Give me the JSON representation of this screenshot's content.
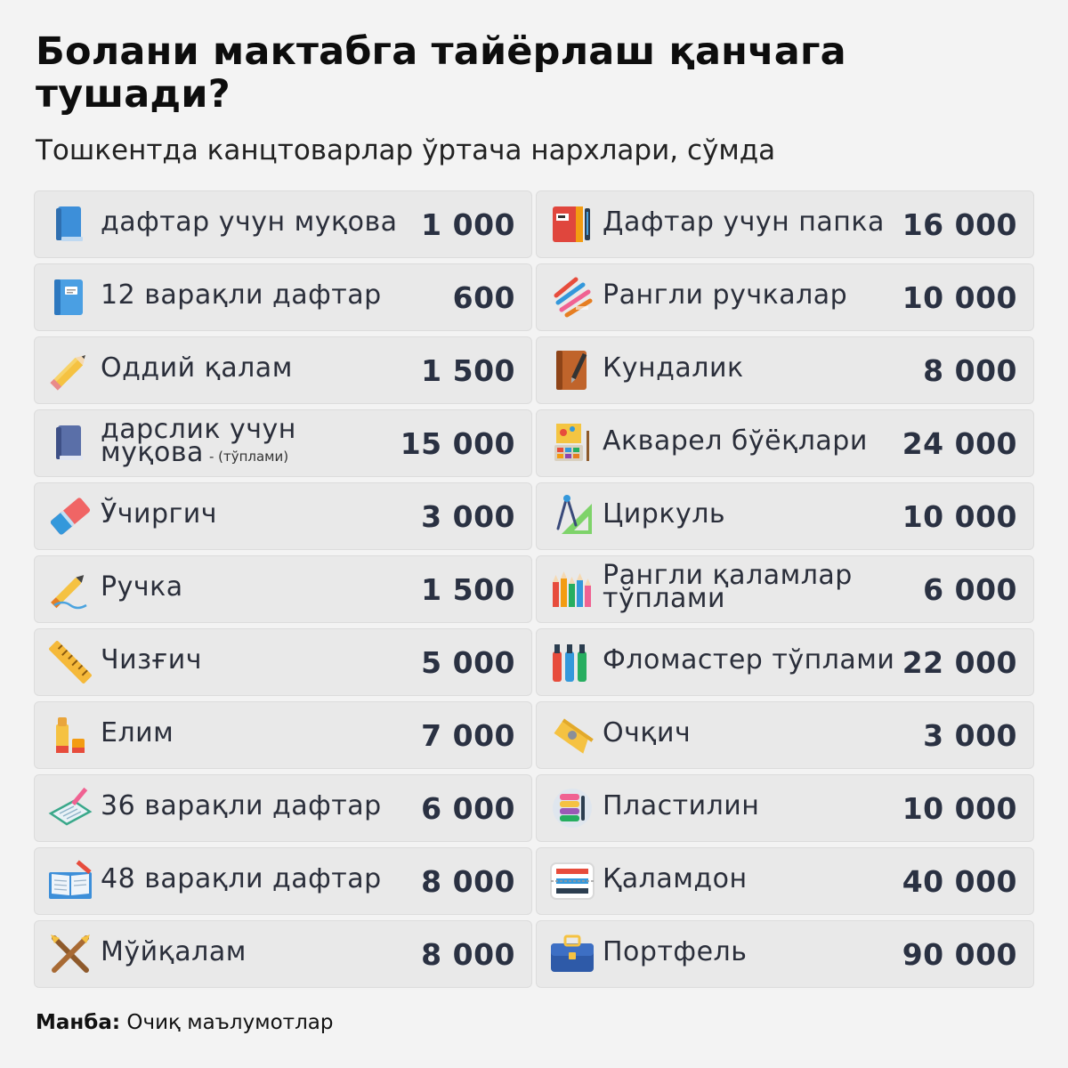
{
  "title": "Болани мактабга тайёрлаш қанчага тушади?",
  "subtitle": "Тошкентда канцтоварлар ўртача нархлари, сўмда",
  "items": [
    {
      "label": "дафтар учун муқова",
      "note": "",
      "value": "1 000",
      "icon": "blue-book-cover-icon"
    },
    {
      "label": "Дафтар учун папка",
      "note": "",
      "value": "16 000",
      "icon": "folder-binder-icon"
    },
    {
      "label": "12 варақли дафтар",
      "note": "",
      "value": "600",
      "icon": "notebook-icon"
    },
    {
      "label": "Рангли ручкалар",
      "note": "",
      "value": "10 000",
      "icon": "colored-pens-icon"
    },
    {
      "label": "Оддий қалам",
      "note": "",
      "value": "1 500",
      "icon": "pencil-icon"
    },
    {
      "label": "Кундалик",
      "note": "",
      "value": "8 000",
      "icon": "diary-pen-icon"
    },
    {
      "label": "дарслик учун муқова",
      "note": "- (тўплами)",
      "value": "15 000",
      "icon": "textbook-cover-icon"
    },
    {
      "label": "Акварел бўёқлари",
      "note": "",
      "value": "24 000",
      "icon": "watercolor-paints-icon"
    },
    {
      "label": "Ўчиргич",
      "note": "",
      "value": "3 000",
      "icon": "eraser-icon"
    },
    {
      "label": "Циркуль",
      "note": "",
      "value": "10 000",
      "icon": "compass-ruler-icon"
    },
    {
      "label": "Ручка",
      "note": "",
      "value": "1 500",
      "icon": "pen-writing-icon"
    },
    {
      "label": "Рангли қаламлар тўплами",
      "note": "",
      "value": "6 000",
      "icon": "colored-pencils-icon"
    },
    {
      "label": "Чизғич",
      "note": "",
      "value": "5 000",
      "icon": "ruler-icon"
    },
    {
      "label": "Фломастер тўплами",
      "note": "",
      "value": "22 000",
      "icon": "markers-icon"
    },
    {
      "label": "Елим",
      "note": "",
      "value": "7 000",
      "icon": "glue-stick-icon"
    },
    {
      "label": "Очқич",
      "note": "",
      "value": "3 000",
      "icon": "sharpener-icon"
    },
    {
      "label": "36 варақли дафтар",
      "note": "",
      "value": "6 000",
      "icon": "notebook-writing-icon"
    },
    {
      "label": "Пластилин",
      "note": "",
      "value": "10 000",
      "icon": "plasticine-icon"
    },
    {
      "label": "48 варақли дафтар",
      "note": "",
      "value": "8 000",
      "icon": "open-book-icon"
    },
    {
      "label": "Қаламдон",
      "note": "",
      "value": "40 000",
      "icon": "pencil-case-icon"
    },
    {
      "label": "Мўйқалам",
      "note": "",
      "value": "8 000",
      "icon": "brushes-icon"
    },
    {
      "label": "Портфель",
      "note": "",
      "value": "90 000",
      "icon": "briefcase-icon"
    }
  ],
  "source": {
    "label": "Манба:",
    "text": "Очиқ маълумотлар"
  }
}
